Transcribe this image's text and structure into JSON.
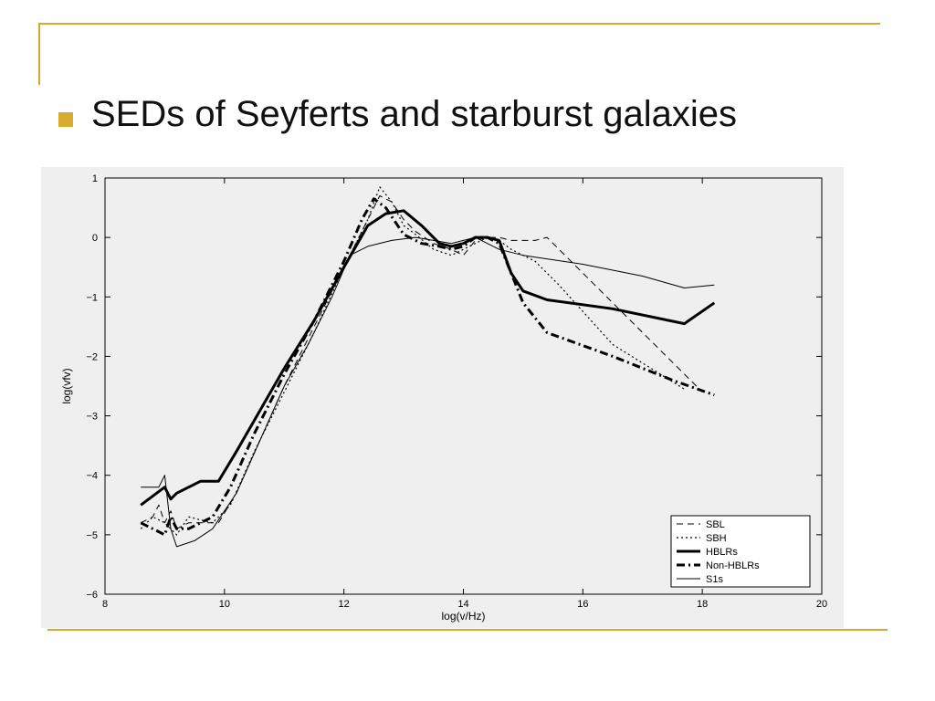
{
  "slide": {
    "bullet_text": "SEDs of Seyferts and starburst galaxies",
    "accent_color": "#d9a62f",
    "bullet_color": "#d8ab2c"
  },
  "chart_data": {
    "type": "line",
    "xlabel": "log(v/Hz)",
    "ylabel": "log(vfv)",
    "xlim": [
      8,
      20
    ],
    "ylim": [
      -6,
      1
    ],
    "xticks": [
      8,
      10,
      12,
      14,
      16,
      18,
      20
    ],
    "yticks": [
      1,
      0,
      -1,
      -2,
      -3,
      -4,
      -5,
      -6
    ],
    "grid": false,
    "legend_position": "bottom-right",
    "series": [
      {
        "name": "SBL",
        "style": "dashed",
        "x": [
          8.6,
          8.8,
          8.9,
          9.0,
          9.1,
          9.2,
          9.4,
          9.6,
          9.9,
          10.2,
          10.6,
          11.0,
          11.5,
          12.0,
          12.4,
          12.6,
          12.8,
          13.0,
          13.2,
          13.5,
          13.8,
          14.0,
          14.2,
          14.4,
          14.6,
          14.8,
          15.0,
          15.2,
          15.4,
          16.0,
          17.0,
          18.0
        ],
        "y": [
          -4.8,
          -4.7,
          -4.5,
          -4.8,
          -4.6,
          -4.9,
          -4.8,
          -4.8,
          -4.8,
          -4.3,
          -3.4,
          -2.5,
          -1.5,
          -0.5,
          0.3,
          0.7,
          0.6,
          0.3,
          0.1,
          -0.1,
          -0.2,
          -0.3,
          -0.05,
          0.0,
          0.0,
          -0.05,
          -0.05,
          -0.05,
          0.0,
          -0.6,
          -1.6,
          -2.6
        ]
      },
      {
        "name": "SBH",
        "style": "dotted",
        "x": [
          8.6,
          8.8,
          9.0,
          9.2,
          9.4,
          9.8,
          10.1,
          10.5,
          11.0,
          11.5,
          12.0,
          12.4,
          12.6,
          12.8,
          13.0,
          13.2,
          13.5,
          13.8,
          14.0,
          14.2,
          14.4,
          14.6,
          14.8,
          15.0,
          15.2,
          15.6,
          16.5,
          17.7
        ],
        "y": [
          -4.9,
          -4.7,
          -4.8,
          -5.0,
          -4.7,
          -4.8,
          -4.5,
          -3.6,
          -2.6,
          -1.6,
          -0.5,
          0.3,
          0.85,
          0.6,
          0.2,
          0.05,
          -0.2,
          -0.3,
          -0.2,
          -0.1,
          0.0,
          -0.05,
          -0.2,
          -0.3,
          -0.4,
          -0.8,
          -1.8,
          -2.55
        ]
      },
      {
        "name": "HBLRs",
        "style": "thick-solid",
        "x": [
          8.6,
          9.0,
          9.1,
          9.2,
          9.6,
          9.9,
          10.2,
          10.6,
          11.0,
          11.5,
          12.0,
          12.4,
          12.7,
          13.0,
          13.3,
          13.6,
          13.8,
          14.0,
          14.2,
          14.4,
          14.6,
          14.8,
          15.0,
          15.4,
          16.5,
          17.7,
          18.2
        ],
        "y": [
          -4.5,
          -4.2,
          -4.4,
          -4.3,
          -4.1,
          -4.1,
          -3.6,
          -2.9,
          -2.2,
          -1.4,
          -0.5,
          0.2,
          0.4,
          0.45,
          0.2,
          -0.1,
          -0.15,
          -0.1,
          0.0,
          0.0,
          -0.05,
          -0.6,
          -0.9,
          -1.05,
          -1.2,
          -1.45,
          -1.1
        ]
      },
      {
        "name": "Non-HBLRs",
        "style": "dash-dot",
        "x": [
          8.6,
          8.8,
          9.0,
          9.1,
          9.2,
          9.4,
          9.8,
          10.1,
          10.5,
          11.0,
          11.5,
          12.0,
          12.3,
          12.5,
          12.7,
          13.0,
          13.3,
          13.6,
          13.8,
          14.0,
          14.2,
          14.4,
          14.6,
          14.8,
          15.0,
          15.4,
          16.5,
          17.5,
          18.2
        ],
        "y": [
          -4.8,
          -4.9,
          -5.0,
          -4.7,
          -4.9,
          -4.9,
          -4.7,
          -4.2,
          -3.3,
          -2.3,
          -1.4,
          -0.4,
          0.3,
          0.65,
          0.5,
          0.05,
          -0.1,
          -0.15,
          -0.2,
          -0.15,
          0.0,
          0.0,
          -0.1,
          -0.6,
          -1.1,
          -1.6,
          -2.0,
          -2.4,
          -2.65
        ]
      },
      {
        "name": "S1s",
        "style": "thin-solid",
        "x": [
          8.6,
          8.9,
          9.0,
          9.1,
          9.2,
          9.5,
          9.8,
          10.2,
          10.6,
          11.0,
          11.4,
          11.8,
          12.1,
          12.4,
          12.8,
          13.2,
          13.5,
          13.8,
          14.0,
          14.2,
          14.4,
          14.6,
          15.0,
          16.0,
          17.0,
          17.7,
          18.2
        ],
        "y": [
          -4.2,
          -4.2,
          -4.0,
          -4.9,
          -5.2,
          -5.1,
          -4.9,
          -4.3,
          -3.4,
          -2.5,
          -1.8,
          -1.0,
          -0.3,
          -0.15,
          -0.05,
          0.0,
          -0.05,
          -0.1,
          -0.05,
          0.0,
          -0.1,
          -0.2,
          -0.3,
          -0.45,
          -0.65,
          -0.85,
          -0.8
        ]
      }
    ]
  }
}
